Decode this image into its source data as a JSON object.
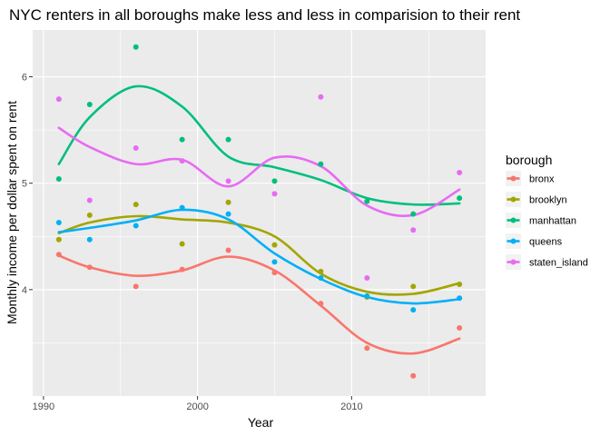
{
  "chart_data": {
    "type": "scatter",
    "title": "NYC renters in all boroughs make less and less in comparision to their rent",
    "xlabel": "Year",
    "ylabel": "Monthly income per dollar spent on rent",
    "xlim": [
      1989.3,
      2018.7
    ],
    "ylim": [
      3.0,
      6.44
    ],
    "x_ticks": [
      1990,
      2000,
      2010
    ],
    "y_ticks": [
      4,
      5,
      6
    ],
    "x_minor": [
      1995,
      2005,
      2015
    ],
    "y_minor": [
      3.5,
      4.5,
      5.5
    ],
    "grid": true,
    "legend": {
      "title": "borough",
      "placement": "right"
    },
    "series": [
      {
        "name": "bronx",
        "color": "#F8766D",
        "points": [
          [
            1991,
            4.33
          ],
          [
            1993,
            4.21
          ],
          [
            1996,
            4.03
          ],
          [
            1999,
            4.19
          ],
          [
            2002,
            4.37
          ],
          [
            2005,
            4.16
          ],
          [
            2008,
            3.87
          ],
          [
            2011,
            3.45
          ],
          [
            2014,
            3.19
          ],
          [
            2017,
            3.64
          ]
        ],
        "smooth": [
          [
            1991,
            4.32
          ],
          [
            1993,
            4.21
          ],
          [
            1996,
            4.13
          ],
          [
            1999,
            4.18
          ],
          [
            2002,
            4.31
          ],
          [
            2005,
            4.18
          ],
          [
            2008,
            3.85
          ],
          [
            2011,
            3.5
          ],
          [
            2014,
            3.4
          ],
          [
            2017,
            3.54
          ]
        ]
      },
      {
        "name": "brooklyn",
        "color": "#A3A500",
        "points": [
          [
            1991,
            4.47
          ],
          [
            1993,
            4.7
          ],
          [
            1996,
            4.8
          ],
          [
            1999,
            4.43
          ],
          [
            2002,
            4.82
          ],
          [
            2005,
            4.42
          ],
          [
            2008,
            4.17
          ],
          [
            2011,
            3.93
          ],
          [
            2014,
            4.03
          ],
          [
            2017,
            4.05
          ]
        ],
        "smooth": [
          [
            1991,
            4.53
          ],
          [
            1993,
            4.63
          ],
          [
            1996,
            4.69
          ],
          [
            1999,
            4.66
          ],
          [
            2002,
            4.63
          ],
          [
            2005,
            4.5
          ],
          [
            2008,
            4.15
          ],
          [
            2011,
            3.98
          ],
          [
            2014,
            3.96
          ],
          [
            2017,
            4.06
          ]
        ]
      },
      {
        "name": "manhattan",
        "color": "#00BF7D",
        "points": [
          [
            1991,
            5.04
          ],
          [
            1993,
            5.74
          ],
          [
            1996,
            6.28
          ],
          [
            1999,
            5.41
          ],
          [
            2002,
            5.41
          ],
          [
            2005,
            5.02
          ],
          [
            2008,
            5.18
          ],
          [
            2011,
            4.83
          ],
          [
            2014,
            4.71
          ],
          [
            2017,
            4.86
          ]
        ],
        "smooth": [
          [
            1991,
            5.18
          ],
          [
            1993,
            5.62
          ],
          [
            1996,
            5.91
          ],
          [
            1999,
            5.72
          ],
          [
            2002,
            5.25
          ],
          [
            2005,
            5.15
          ],
          [
            2008,
            5.03
          ],
          [
            2011,
            4.86
          ],
          [
            2014,
            4.8
          ],
          [
            2017,
            4.81
          ]
        ]
      },
      {
        "name": "queens",
        "color": "#00B0F6",
        "points": [
          [
            1991,
            4.63
          ],
          [
            1993,
            4.47
          ],
          [
            1996,
            4.6
          ],
          [
            1999,
            4.77
          ],
          [
            2002,
            4.71
          ],
          [
            2005,
            4.26
          ],
          [
            2008,
            4.11
          ],
          [
            2011,
            3.94
          ],
          [
            2014,
            3.81
          ],
          [
            2017,
            3.92
          ]
        ],
        "smooth": [
          [
            1991,
            4.54
          ],
          [
            1993,
            4.58
          ],
          [
            1996,
            4.65
          ],
          [
            1999,
            4.75
          ],
          [
            2002,
            4.66
          ],
          [
            2005,
            4.34
          ],
          [
            2008,
            4.1
          ],
          [
            2011,
            3.93
          ],
          [
            2014,
            3.87
          ],
          [
            2017,
            3.91
          ]
        ]
      },
      {
        "name": "staten_island",
        "color": "#E76BF3",
        "points": [
          [
            1991,
            5.79
          ],
          [
            1993,
            4.84
          ],
          [
            1996,
            5.33
          ],
          [
            1999,
            5.21
          ],
          [
            2002,
            5.02
          ],
          [
            2005,
            4.9
          ],
          [
            2008,
            5.81
          ],
          [
            2011,
            4.11
          ],
          [
            2014,
            4.56
          ],
          [
            2017,
            5.1
          ]
        ],
        "smooth": [
          [
            1991,
            5.52
          ],
          [
            1993,
            5.34
          ],
          [
            1996,
            5.18
          ],
          [
            1999,
            5.22
          ],
          [
            2002,
            4.97
          ],
          [
            2005,
            5.24
          ],
          [
            2008,
            5.16
          ],
          [
            2011,
            4.79
          ],
          [
            2014,
            4.7
          ],
          [
            2017,
            4.94
          ]
        ]
      }
    ]
  }
}
